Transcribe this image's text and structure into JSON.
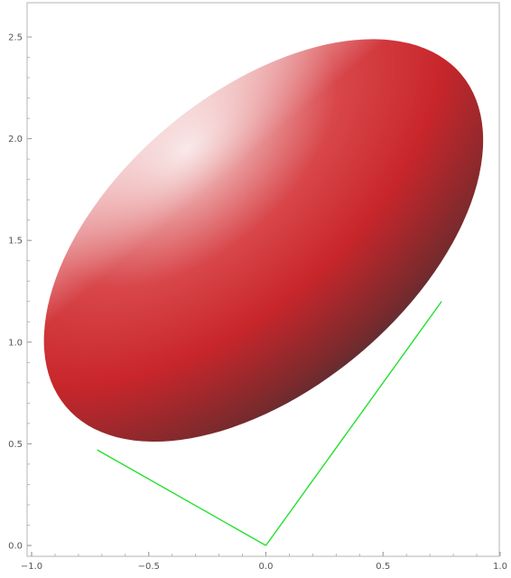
{
  "chart_data": {
    "type": "scatter",
    "title": "",
    "xlabel": "",
    "ylabel": "",
    "xlim": [
      -1.0,
      1.0
    ],
    "ylim": [
      0.0,
      2.6
    ],
    "grid": false,
    "x_ticks": [
      {
        "value": -1.0,
        "label": "−1.0"
      },
      {
        "value": -0.5,
        "label": "−0.5"
      },
      {
        "value": 0.0,
        "label": "0.0"
      },
      {
        "value": 0.5,
        "label": "0.5"
      },
      {
        "value": 1.0,
        "label": "1.0"
      }
    ],
    "y_ticks": [
      {
        "value": 0.0,
        "label": "0.0"
      },
      {
        "value": 0.5,
        "label": "0.5"
      },
      {
        "value": 1.0,
        "label": "1.0"
      },
      {
        "value": 1.5,
        "label": "1.5"
      },
      {
        "value": 2.0,
        "label": "2.0"
      },
      {
        "value": 2.5,
        "label": "2.5"
      }
    ],
    "ellipsoid": {
      "center": [
        -0.01,
        1.5
      ],
      "semi_axes": [
        1.27,
        0.73
      ],
      "rotation_deg": 40,
      "colors": {
        "light": "#f7dede",
        "mid": "#c8262b",
        "dark": "#3a3236"
      }
    },
    "tangent_lines": {
      "color": "#22e02e",
      "apex": [
        0.0,
        0.0
      ],
      "points": [
        [
          -0.72,
          0.47
        ],
        [
          0.75,
          1.2
        ]
      ]
    }
  }
}
